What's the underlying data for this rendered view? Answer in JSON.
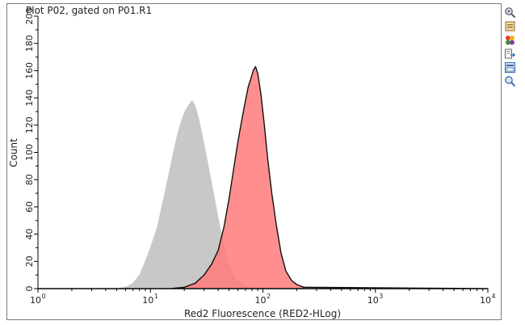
{
  "plot": {
    "title": "Plot P02, gated on P01.R1"
  },
  "toolbar": {
    "icons": [
      "zoom-icon",
      "copy-icon",
      "color-palette-icon",
      "export-icon",
      "print-icon",
      "search-icon"
    ]
  },
  "chart_data": {
    "type": "area",
    "title": "Plot P02, gated on P01.R1",
    "xlabel": "Red2 Fluorescence (RED2-HLog)",
    "ylabel": "Count",
    "xscale": "log",
    "xlim": [
      1,
      10000
    ],
    "ylim": [
      0,
      200
    ],
    "x_ticks": [
      {
        "value": 1,
        "base": "10",
        "exp": "0"
      },
      {
        "value": 10,
        "base": "10",
        "exp": "1"
      },
      {
        "value": 100,
        "base": "10",
        "exp": "2"
      },
      {
        "value": 1000,
        "base": "10",
        "exp": "3"
      },
      {
        "value": 10000,
        "base": "10",
        "exp": "4"
      }
    ],
    "y_ticks": [
      "0",
      "20",
      "40",
      "60",
      "80",
      "100",
      "120",
      "140",
      "160",
      "180",
      "200"
    ],
    "grid": false,
    "legend": "none",
    "series": [
      {
        "color": "#c8c8c8",
        "stroke": "#c8c8c8",
        "x": [
          1,
          5.0,
          6.0,
          7.0,
          8.0,
          9.0,
          10.0,
          11.5,
          13.0,
          14.5,
          16.0,
          17.5,
          19.0,
          20.5,
          22.0,
          23.5,
          25.0,
          27.0,
          29.0,
          31.0,
          33.0,
          36.0,
          40.0,
          44.0,
          48.0,
          53.0,
          60.0,
          70.0,
          80.0,
          100.0,
          10000
        ],
        "y": [
          0,
          0,
          1,
          4,
          10,
          20,
          30,
          45,
          65,
          83,
          100,
          114,
          124,
          131,
          135,
          138,
          134,
          124,
          112,
          100,
          88,
          72,
          52,
          35,
          22,
          12,
          5,
          2,
          1,
          0,
          0
        ]
      },
      {
        "color": "#ff7a7a",
        "stroke": "#111111",
        "x": [
          1,
          15.0,
          20.0,
          25.0,
          30.0,
          35.0,
          40.0,
          45.0,
          50.0,
          55.0,
          60.0,
          65.0,
          70.0,
          74.0,
          78.0,
          82.0,
          86.0,
          90.0,
          96.0,
          103.0,
          110.0,
          120.0,
          132.0,
          145.0,
          160.0,
          180.0,
          200.0,
          230.0,
          10000
        ],
        "y": [
          0,
          0,
          1,
          4,
          10,
          18,
          28,
          45,
          66,
          88,
          108,
          124,
          138,
          148,
          154,
          160,
          163,
          158,
          143,
          120,
          96,
          70,
          46,
          26,
          13,
          6,
          3,
          1,
          0
        ]
      }
    ]
  }
}
